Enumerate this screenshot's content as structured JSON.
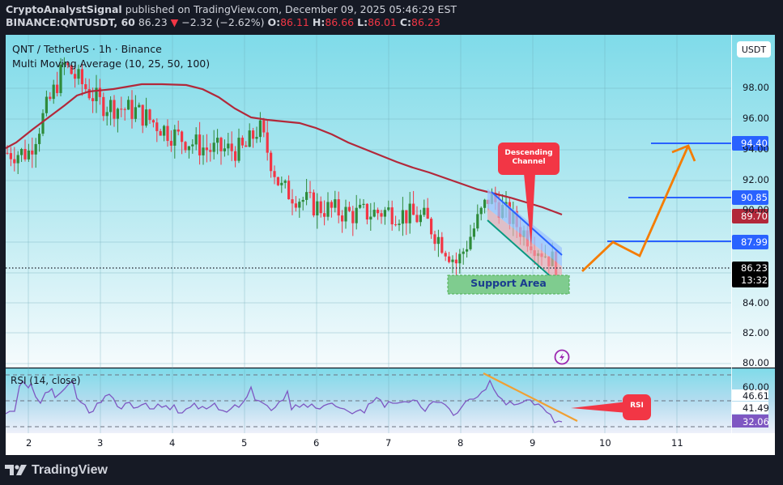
{
  "header": {
    "publisher": "CryptoAnalystSignal",
    "published_text": "published on TradingView.com, December 09, 2025 05:46:29 EST",
    "symbol": "BINANCE:QNTUSDT, 60",
    "last_price": "86.23",
    "change_arrow": "▼",
    "change": "−2.32 (−2.62%)",
    "open_label": "O:",
    "open": "86.11",
    "high_label": "H:",
    "high": "86.66",
    "low_label": "L:",
    "low": "86.01",
    "close_label": "C:",
    "close": "86.23"
  },
  "legend": {
    "title": "QNT / TetherUS · 1h · Binance",
    "indicator": "Multi Moving Average (10, 25, 50, 100)",
    "rsi": "RSI (14, close)"
  },
  "price_axis": {
    "currency_button": "USDT",
    "ticks": [
      "98.00",
      "96.00",
      "94.00",
      "92.00",
      "90.00",
      "84.00",
      "82.00",
      "80.00"
    ],
    "labels": {
      "target3": "94.40",
      "target2": "90.85",
      "ma": "89.70",
      "target1": "87.99",
      "current": "86.23",
      "countdown": "13:32"
    }
  },
  "rsi_axis": {
    "ticks": [
      "60.00"
    ],
    "labels": {
      "upper": "46.61",
      "lower": "41.49",
      "current": "32.06"
    }
  },
  "time_axis": {
    "ticks": [
      "2",
      "3",
      "4",
      "5",
      "6",
      "7",
      "8",
      "9",
      "10",
      "11"
    ]
  },
  "annotations": {
    "channel_callout": "Descending Channel",
    "support_label": "Support Area",
    "rsi_callout": "RSI"
  },
  "colors": {
    "up": "#2e8b3a",
    "down": "#f23645",
    "ma": "#b2283a",
    "target_line": "#2962ff",
    "projection": "#f57c00",
    "rsi_line": "#7e57c2",
    "callout": "#f23645",
    "support_fill": "#7fcc8f"
  },
  "footer": {
    "brand": "TradingView"
  },
  "chart_data": {
    "type": "candlestick",
    "title": "QNT / TetherUS · 1h · Binance",
    "xlabel": "",
    "ylabel": "USDT",
    "x_ticks": [
      "2",
      "3",
      "4",
      "5",
      "6",
      "7",
      "8",
      "9",
      "10",
      "11"
    ],
    "ylim": [
      79.5,
      100.5
    ],
    "y_ticks": [
      80,
      82,
      84,
      86,
      88,
      90,
      92,
      94,
      96,
      98
    ],
    "price_path_approx": [
      {
        "day": 2.0,
        "price": 93.8
      },
      {
        "day": 2.5,
        "price": 99.5
      },
      {
        "day": 3.0,
        "price": 97.0
      },
      {
        "day": 3.5,
        "price": 96.5
      },
      {
        "day": 4.0,
        "price": 95.0
      },
      {
        "day": 4.5,
        "price": 94.0
      },
      {
        "day": 5.0,
        "price": 94.0
      },
      {
        "day": 5.2,
        "price": 95.5
      },
      {
        "day": 5.5,
        "price": 91.5
      },
      {
        "day": 6.0,
        "price": 90.3
      },
      {
        "day": 6.5,
        "price": 89.8
      },
      {
        "day": 7.0,
        "price": 90.0
      },
      {
        "day": 7.5,
        "price": 89.5
      },
      {
        "day": 7.95,
        "price": 86.6
      },
      {
        "day": 8.4,
        "price": 91.0
      },
      {
        "day": 9.0,
        "price": 88.0
      },
      {
        "day": 9.4,
        "price": 86.23
      }
    ],
    "moving_average_100": [
      {
        "day": 1.8,
        "price": 93.8
      },
      {
        "day": 3.0,
        "price": 97.8
      },
      {
        "day": 4.0,
        "price": 98.3
      },
      {
        "day": 4.5,
        "price": 98.0
      },
      {
        "day": 5.0,
        "price": 96.0
      },
      {
        "day": 5.5,
        "price": 95.7
      },
      {
        "day": 6.0,
        "price": 94.6
      },
      {
        "day": 7.0,
        "price": 92.5
      },
      {
        "day": 8.0,
        "price": 91.0
      },
      {
        "day": 9.0,
        "price": 90.2
      },
      {
        "day": 9.4,
        "price": 89.7
      }
    ],
    "horizontal_targets": [
      87.99,
      90.85,
      94.4
    ],
    "current_price": 86.23,
    "support_area": [
      84.9,
      86.2
    ],
    "descending_channel": {
      "upper": [
        [
          8.4,
          91.3
        ],
        [
          9.4,
          87.2
        ]
      ],
      "lower": [
        [
          8.4,
          89.3
        ],
        [
          9.4,
          85.2
        ]
      ]
    },
    "projection_path": [
      [
        9.7,
        86.0
      ],
      [
        10.1,
        88.0
      ],
      [
        10.5,
        87.3
      ],
      [
        11.2,
        94.4
      ]
    ],
    "rsi": {
      "period": 14,
      "levels": [
        30,
        50,
        70
      ],
      "current": 32.06,
      "axis_labels": [
        60.0,
        46.61,
        41.49,
        32.06
      ],
      "trend_line": [
        [
          8.3,
          70
        ],
        [
          9.6,
          32
        ]
      ]
    }
  }
}
